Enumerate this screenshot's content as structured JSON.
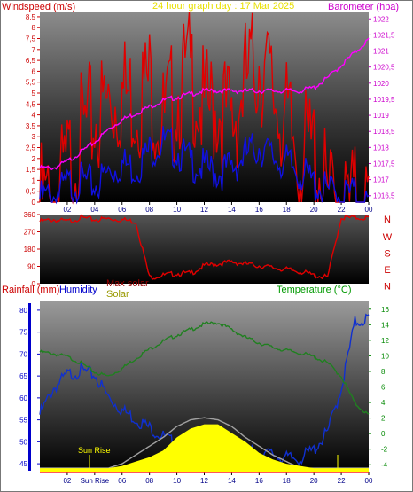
{
  "header": {
    "left_label": "Windspeed (m/s)",
    "center_label": "24 hour graph day : 17 Mar 2025",
    "right_label": "Barometer (hpa)"
  },
  "middle_panel": {
    "compass_labels": [
      "N",
      "W",
      "S",
      "E",
      "N"
    ]
  },
  "bottom_header": {
    "rainfall_label": "Rainfall (mm)",
    "humidity_label": "Humidity",
    "max_solar_label": "Max solar",
    "solar_label": "Solar",
    "temperature_label": "Temperature (°C)"
  },
  "annotations": {
    "sun_rise": "Sun Rise",
    "sun_rise_tick": "Sun Rise"
  },
  "colors": {
    "wind_gust": "#e00000",
    "wind_avg": "#1010e0",
    "barometer": "#ff00ff",
    "direction": "#e00000",
    "humidity": "#1030d0",
    "temperature": "#208020",
    "solar": "#ffff00",
    "max_solar": "#a0a0a0",
    "rain_axis": "#0000cc",
    "title_yellow": "#e8e000"
  },
  "chart_data": [
    {
      "type": "line",
      "panel": "wind_barometer",
      "x_ticks": [
        "02",
        "04",
        "06",
        "08",
        "10",
        "12",
        "14",
        "16",
        "18",
        "20",
        "22",
        "00"
      ],
      "y_left_ticks": [
        "0",
        "0,5",
        "1",
        "1,5",
        "2",
        "2,5",
        "3",
        "3,5",
        "4",
        "4,5",
        "5",
        "5,5",
        "6",
        "6,5",
        "7",
        "7,5",
        "8",
        "8,5"
      ],
      "ylim_left": [
        0,
        8.7
      ],
      "y_right_ticks": [
        "1016,5",
        "1017",
        "1017,5",
        "1018",
        "1018,5",
        "1019",
        "1019,5",
        "1020",
        "1020,5",
        "1021",
        "1021,5",
        "1022"
      ],
      "ylim_right": [
        1016.3,
        1022.2
      ],
      "x": [
        0,
        1,
        2,
        3,
        4,
        5,
        6,
        7,
        8,
        9,
        10,
        11,
        12,
        13,
        14,
        15,
        16,
        17,
        18,
        19,
        20,
        21,
        22,
        23,
        24
      ],
      "series": [
        {
          "name": "Windspeed gust",
          "axis": "left",
          "color_key": "wind_gust",
          "values": [
            1.5,
            1.2,
            3.0,
            4.5,
            5.2,
            6.0,
            6.5,
            6.2,
            7.0,
            5.0,
            6.5,
            7.5,
            5.5,
            6.0,
            5.0,
            7.0,
            8.0,
            6.5,
            5.0,
            3.5,
            4.0,
            1.5,
            1.0,
            1.5,
            1.2
          ]
        },
        {
          "name": "Windspeed",
          "axis": "left",
          "color_key": "wind_avg",
          "values": [
            0.6,
            0.7,
            1.2,
            1.4,
            1.2,
            1.8,
            2.2,
            2.0,
            2.8,
            3.2,
            2.8,
            2.3,
            2.0,
            1.8,
            2.0,
            2.6,
            3.0,
            2.5,
            2.2,
            1.8,
            1.3,
            0.9,
            0.8,
            0.8,
            0.3
          ]
        },
        {
          "name": "Barometer",
          "axis": "right",
          "color_key": "barometer",
          "values": [
            1017.4,
            1017.4,
            1017.6,
            1017.9,
            1018.2,
            1018.6,
            1018.9,
            1019.1,
            1019.3,
            1019.5,
            1019.6,
            1019.7,
            1019.8,
            1019.8,
            1019.8,
            1019.8,
            1019.8,
            1019.8,
            1019.8,
            1019.8,
            1019.9,
            1020.2,
            1020.6,
            1021.0,
            1021.4
          ]
        }
      ]
    },
    {
      "type": "line",
      "panel": "wind_direction",
      "y_ticks": [
        "0",
        "90",
        "180",
        "270",
        "360"
      ],
      "ylim": [
        0,
        360
      ],
      "x": [
        0,
        1,
        2,
        3,
        4,
        5,
        6,
        7,
        8,
        9,
        10,
        11,
        12,
        13,
        14,
        15,
        16,
        17,
        18,
        19,
        20,
        21,
        22,
        23,
        24
      ],
      "series": [
        {
          "name": "Wind direction",
          "color_key": "direction",
          "values": [
            330,
            340,
            330,
            350,
            340,
            345,
            340,
            330,
            40,
            50,
            60,
            60,
            100,
            110,
            120,
            110,
            100,
            90,
            80,
            70,
            50,
            40,
            350,
            350,
            350
          ]
        }
      ]
    },
    {
      "type": "line",
      "panel": "rain_humidity_solar_temperature",
      "x_ticks": [
        "02",
        "Sun Rise",
        "06",
        "08",
        "10",
        "12",
        "14",
        "16",
        "18",
        "20",
        "22",
        "00"
      ],
      "y_left_ticks": [
        "45",
        "50",
        "55",
        "60",
        "65",
        "70",
        "75",
        "80"
      ],
      "ylim_left": [
        43,
        82
      ],
      "y_right_ticks": [
        "-4",
        "-2",
        "0",
        "2",
        "4",
        "6",
        "8",
        "10",
        "12",
        "14",
        "16"
      ],
      "ylim_right": [
        -5,
        17
      ],
      "x": [
        0,
        1,
        2,
        3,
        4,
        5,
        6,
        7,
        8,
        9,
        10,
        11,
        12,
        13,
        14,
        15,
        16,
        17,
        18,
        19,
        20,
        21,
        22,
        23,
        24
      ],
      "series": [
        {
          "name": "Humidity",
          "axis": "left",
          "color_key": "humidity",
          "values": [
            57,
            63,
            66,
            67,
            66,
            61,
            58,
            56,
            54,
            52,
            50,
            49,
            48,
            48,
            48,
            49,
            48,
            48,
            47,
            47,
            49,
            53,
            63,
            78,
            79
          ]
        },
        {
          "name": "Temperature",
          "axis": "right",
          "color_key": "temperature",
          "values": [
            10.6,
            10.4,
            10.0,
            9.2,
            8.0,
            7.5,
            8.5,
            9.8,
            11.0,
            12.0,
            12.8,
            13.5,
            14.2,
            14.4,
            13.5,
            12.5,
            11.8,
            11.2,
            10.8,
            10.5,
            10.0,
            9.2,
            7.5,
            4.0,
            2.5
          ]
        },
        {
          "name": "Max solar",
          "axis": "left",
          "color_key": "max_solar",
          "values": [
            44,
            44,
            44,
            44,
            44,
            44,
            45,
            47,
            49,
            51,
            53.5,
            55,
            55.5,
            55,
            53.5,
            51,
            49,
            47,
            45.5,
            44,
            44,
            44,
            44,
            44,
            44
          ]
        },
        {
          "name": "Solar",
          "axis": "left",
          "color_key": "solar",
          "values": [
            44,
            44,
            44,
            44,
            44,
            44,
            44.5,
            45.5,
            46.5,
            48,
            51,
            53,
            54,
            54,
            52,
            50,
            47.5,
            46,
            45,
            44.5,
            44,
            44,
            44,
            44,
            44
          ]
        },
        {
          "name": "Rainfall",
          "axis": "left",
          "color_key": "rain_axis",
          "values": [
            0,
            0,
            0,
            0,
            0,
            0,
            0,
            0,
            0,
            0,
            0,
            0,
            0,
            0,
            0,
            0,
            0,
            0,
            0,
            0,
            0,
            0,
            0,
            0,
            0
          ]
        }
      ]
    }
  ]
}
